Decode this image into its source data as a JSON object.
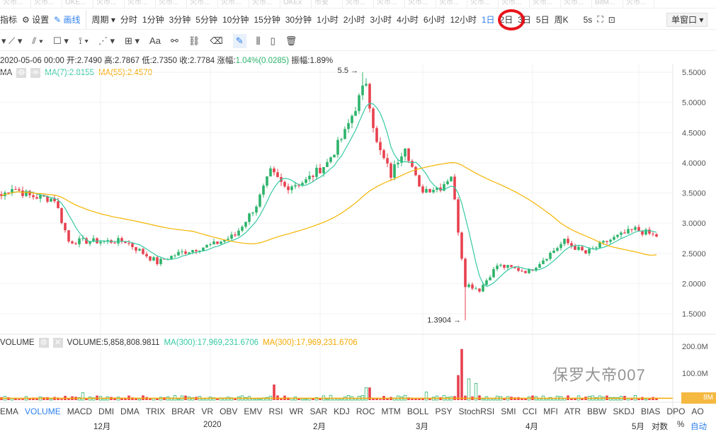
{
  "tabs": [
    "火币...",
    "火币...",
    "OKE...",
    "火币...",
    "火币...",
    "火币...",
    "火币...",
    "火币...",
    "火币...",
    "OKEx",
    "币安",
    "火币...",
    "火币...",
    "火币...",
    "火币...",
    "火币...",
    "火币...",
    "火币...",
    "火币...",
    "BitM...",
    "火币..."
  ],
  "toolbar": {
    "indicators": "指标",
    "settings": "设置",
    "draw": "画线",
    "period": "周期",
    "intervals": [
      "分时",
      "1分钟",
      "3分钟",
      "5分钟",
      "10分钟",
      "15分钟",
      "30分钟",
      "1小时",
      "2小时",
      "3小时",
      "4小时",
      "6小时",
      "12小时",
      "1日",
      "2日",
      "3日",
      "5日",
      "周K"
    ],
    "active_interval": "1日",
    "refresh": "5s",
    "window": "单窗口"
  },
  "draw_tools": {
    "text": "Aa"
  },
  "info": {
    "date": "2020-05-06 00:00",
    "open_l": "开:",
    "open": "2.7490",
    "high_l": "高:",
    "high": "2.7867",
    "low_l": "低:",
    "low": "2.7350",
    "close_l": "收:",
    "close": "2.7784",
    "chg_l": "涨幅:",
    "chg": "1.04%(0.0285)",
    "amp_l": "振幅:",
    "amp": "1.89%"
  },
  "ma": {
    "label": "MA",
    "ma7": "MA(7):2.8155",
    "ma55": "MA(55):2.4570"
  },
  "vol": {
    "label": "VOLUME",
    "value": "VOLUME:5,858,808.9811",
    "ma1": "MA(300):17,969,231.6706",
    "ma2": "MA(300):17,969,231.6706",
    "tag": "8M"
  },
  "indicators": [
    "EMA",
    "VOLUME",
    "MACD",
    "DMI",
    "DMA",
    "TRIX",
    "BRAR",
    "VR",
    "OBV",
    "EMV",
    "RSI",
    "WR",
    "SAR",
    "KDJ",
    "ROC",
    "MTM",
    "BOLL",
    "PSY",
    "StochRSI",
    "SMI",
    "CCI",
    "MFI",
    "ATR",
    "BBW",
    "SKDJ",
    "BIAS",
    "DPO",
    "AO"
  ],
  "active_indicator": "VOLUME",
  "footer": {
    "log": "对数",
    "pct": "%",
    "auto": "自动"
  },
  "watermark": "保罗大帝007",
  "colors": {
    "up": "#2db36b",
    "down": "#e8414f",
    "ma7": "#36c9a3",
    "ma55": "#f5b400",
    "accent": "#2f80ed"
  },
  "chart_data": {
    "type": "candlestick",
    "price_axis": {
      "ticks": [
        "5.5000",
        "5.0000",
        "4.5000",
        "4.0000",
        "3.5000",
        "3.0000",
        "2.5000",
        "2.0000",
        "1.5000"
      ],
      "range": [
        1.3,
        5.7
      ]
    },
    "volume_axis": {
      "ticks": [
        "200.0M",
        "100.0M"
      ],
      "range": [
        0,
        215
      ]
    },
    "x_labels": [
      {
        "label": "12月",
        "day": 28
      },
      {
        "label": "2020",
        "day": 59
      },
      {
        "label": "2月",
        "day": 90
      },
      {
        "label": "3月",
        "day": 119
      },
      {
        "label": "4月",
        "day": 150
      },
      {
        "label": "5月",
        "day": 180
      }
    ],
    "annotations": [
      {
        "label": "5.5",
        "day": 102,
        "price": 5.5
      },
      {
        "label": "1.3904",
        "day": 131,
        "price": 1.3904
      }
    ],
    "close_anchors": [
      [
        0,
        3.45
      ],
      [
        3,
        3.6
      ],
      [
        8,
        3.45
      ],
      [
        15,
        3.4
      ],
      [
        19,
        2.7
      ],
      [
        25,
        2.7
      ],
      [
        35,
        2.7
      ],
      [
        44,
        2.35
      ],
      [
        50,
        2.5
      ],
      [
        60,
        2.65
      ],
      [
        66,
        2.8
      ],
      [
        72,
        3.3
      ],
      [
        76,
        3.85
      ],
      [
        80,
        3.6
      ],
      [
        86,
        3.7
      ],
      [
        92,
        4.0
      ],
      [
        97,
        4.5
      ],
      [
        103,
        5.35
      ],
      [
        106,
        4.3
      ],
      [
        110,
        3.8
      ],
      [
        114,
        4.3
      ],
      [
        118,
        3.55
      ],
      [
        124,
        3.6
      ],
      [
        127,
        3.8
      ],
      [
        129,
        2.9
      ],
      [
        131,
        2.0
      ],
      [
        135,
        1.9
      ],
      [
        140,
        2.3
      ],
      [
        149,
        2.2
      ],
      [
        156,
        2.55
      ],
      [
        159,
        2.7
      ],
      [
        165,
        2.5
      ],
      [
        171,
        2.7
      ],
      [
        179,
        2.9
      ],
      [
        185,
        2.78
      ]
    ],
    "volume_spikes": [
      [
        129,
        93
      ],
      [
        130,
        190
      ],
      [
        132,
        79
      ],
      [
        134,
        62
      ],
      [
        77,
        58
      ],
      [
        103,
        46
      ],
      [
        104,
        47
      ],
      [
        23,
        28
      ],
      [
        120,
        30
      ]
    ]
  }
}
